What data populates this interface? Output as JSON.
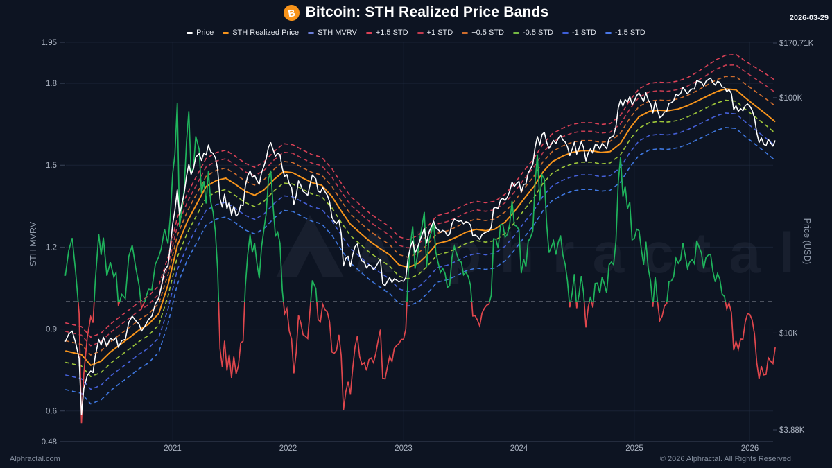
{
  "header": {
    "title": "Bitcoin: STH Realized Price Bands",
    "icon_glyph": "B",
    "date": "2026-03-29"
  },
  "legend": {
    "items": [
      {
        "label": "Price",
        "color": "#ffffff"
      },
      {
        "label": "STH Realized Price",
        "color": "#f7941c"
      },
      {
        "label": "STH MVRV",
        "color": "#6c7fd8"
      },
      {
        "label": "+1.5 STD",
        "color": "#da4156"
      },
      {
        "label": "+1 STD",
        "color": "#c43c50"
      },
      {
        "label": "+0.5 STD",
        "color": "#cf6d2d"
      },
      {
        "label": "-0.5 STD",
        "color": "#74b843"
      },
      {
        "label": "-1 STD",
        "color": "#3e5fd8"
      },
      {
        "label": "-1.5 STD",
        "color": "#4a78e8"
      }
    ]
  },
  "axes": {
    "left": {
      "title": "STH MVRV",
      "tick_labels": [
        "1.95",
        "1.8",
        "1.5",
        "1.2",
        "0.9",
        "0.6",
        "0.48"
      ],
      "tick_values": [
        1.95,
        1.8,
        1.5,
        1.2,
        0.9,
        0.6,
        0.48
      ]
    },
    "right": {
      "title": "Price (USD)",
      "labels": [
        "$170.71K",
        "$100K",
        "$10K",
        "$3.88K"
      ],
      "values_usd_k": [
        170.71,
        100,
        10,
        3.88
      ]
    },
    "x": {
      "tick_labels": [
        "2021",
        "2022",
        "2023",
        "2024",
        "2025",
        "2026"
      ],
      "tick_years": [
        2021,
        2022,
        2023,
        2024,
        2025,
        2026
      ]
    }
  },
  "watermark": {
    "text": "Alphractal"
  },
  "footer": {
    "left": "Alphractal.com",
    "right": "© 2026 Alphractal. All Rights Reserved."
  },
  "colors": {
    "background": "#0d1422",
    "grid": "#232e44",
    "axis_line": "#3a4459",
    "tick_text": "#a9b1bf",
    "axis_title": "#8e98a8",
    "reference_dash": "#8b919c",
    "mvrv_up": "#1fb45c",
    "mvrv_down": "#e0474d"
  },
  "chart_data": {
    "type": "line",
    "title": "Bitcoin: STH Realized Price Bands",
    "x_axis": {
      "label": "",
      "range": [
        2020.07,
        2026.24
      ],
      "tick_years": [
        2021,
        2022,
        2023,
        2024,
        2025,
        2026
      ]
    },
    "price_axis": {
      "scale": "log",
      "side": "right",
      "label": "Price (USD)",
      "top_usd_k": 170.71,
      "bottom_usd_k": 3.88
    },
    "mvrv_axis": {
      "scale": "linear",
      "side": "left",
      "label": "STH MVRV",
      "min": 0.48,
      "max": 1.95,
      "reference_line": 1.0
    },
    "band_upper_widen": {
      "from_t": 2025.5,
      "to_t": 2026.24,
      "max_factor": 1.6
    },
    "series": [
      {
        "id": "price",
        "name": "Price",
        "axis": "price_usd",
        "style": "solid",
        "color": "#ffffff",
        "points_t_usd_k": [
          2020.07,
          9.2,
          2020.1,
          9.9,
          2020.13,
          10.2,
          2020.16,
          9.1,
          2020.19,
          7.8,
          2020.21,
          4.5,
          2020.23,
          5.8,
          2020.26,
          6.6,
          2020.29,
          6.9,
          2020.31,
          6.8,
          2020.33,
          8.0,
          2020.36,
          9.4,
          2020.38,
          8.9,
          2020.4,
          9.6,
          2020.43,
          8.8,
          2020.46,
          9.5,
          2020.49,
          9.3,
          2020.51,
          9.6,
          2020.53,
          8.7,
          2020.56,
          9.3,
          2020.59,
          9.4,
          2020.62,
          11.1,
          2020.65,
          11.8,
          2020.68,
          11.3,
          2020.71,
          10.9,
          2020.73,
          10.2,
          2020.76,
          10.7,
          2020.79,
          11.4,
          2020.82,
          11.8,
          2020.85,
          13.3,
          2020.88,
          14.1,
          2020.9,
          15.6,
          2020.93,
          18.4,
          2020.96,
          19.4,
          2020.98,
          23.5,
          2021.0,
          29.0,
          2021.02,
          33.3,
          2021.04,
          40.6,
          2021.06,
          31.8,
          2021.08,
          35.4,
          2021.1,
          39.2,
          2021.12,
          46.4,
          2021.14,
          52.1,
          2021.16,
          47.2,
          2021.18,
          49.8,
          2021.2,
          55.9,
          2021.23,
          57.8,
          2021.25,
          54.1,
          2021.27,
          58.2,
          2021.29,
          57.1,
          2021.31,
          62.9,
          2021.33,
          58.9,
          2021.35,
          58.0,
          2021.37,
          55.6,
          2021.39,
          49.8,
          2021.41,
          37.2,
          2021.43,
          34.3,
          2021.45,
          38.9,
          2021.47,
          33.8,
          2021.49,
          35.9,
          2021.51,
          31.7,
          2021.53,
          34.6,
          2021.55,
          31.4,
          2021.57,
          32.2,
          2021.59,
          35.1,
          2021.61,
          34.8,
          2021.63,
          42.3,
          2021.65,
          46.4,
          2021.67,
          48.9,
          2021.69,
          45.9,
          2021.71,
          46.8,
          2021.73,
          44.5,
          2021.75,
          42.9,
          2021.77,
          48.0,
          2021.79,
          51.1,
          2021.81,
          54.9,
          2021.83,
          61.6,
          2021.85,
          64.4,
          2021.87,
          60.0,
          2021.89,
          56.4,
          2021.91,
          58.1,
          2021.93,
          57.3,
          2021.95,
          50.0,
          2021.97,
          46.3,
          2021.99,
          47.1,
          2022.01,
          43.0,
          2022.03,
          41.5,
          2022.05,
          35.2,
          2022.07,
          38.4,
          2022.09,
          44.3,
          2022.11,
          42.5,
          2022.13,
          40.0,
          2022.15,
          39.3,
          2022.17,
          38.5,
          2022.19,
          42.6,
          2022.21,
          46.9,
          2022.24,
          45.2,
          2022.26,
          40.1,
          2022.28,
          39.5,
          2022.3,
          41.6,
          2022.32,
          39.8,
          2022.34,
          38.5,
          2022.36,
          36.1,
          2022.38,
          31.0,
          2022.4,
          29.8,
          2022.42,
          29.2,
          2022.44,
          30.1,
          2022.46,
          26.5,
          2022.48,
          19.3,
          2022.5,
          20.8,
          2022.52,
          21.2,
          2022.54,
          19.2,
          2022.56,
          21.5,
          2022.58,
          23.3,
          2022.6,
          23.9,
          2022.62,
          21.4,
          2022.64,
          20.2,
          2022.66,
          20.0,
          2022.68,
          18.9,
          2022.7,
          19.5,
          2022.72,
          19.3,
          2022.74,
          18.6,
          2022.76,
          19.1,
          2022.78,
          19.9,
          2022.8,
          20.5,
          2022.82,
          16.2,
          2022.84,
          15.9,
          2022.86,
          16.6,
          2022.88,
          17.2,
          2022.9,
          16.4,
          2022.92,
          17.0,
          2022.94,
          16.8,
          2022.96,
          16.5,
          2022.98,
          16.7,
          2023.0,
          16.6,
          2023.02,
          17.2,
          2023.04,
          20.9,
          2023.06,
          23.2,
          2023.08,
          24.7,
          2023.1,
          21.9,
          2023.12,
          23.0,
          2023.14,
          24.6,
          2023.16,
          26.1,
          2023.18,
          27.8,
          2023.2,
          24.1,
          2023.22,
          26.8,
          2023.24,
          28.2,
          2023.26,
          29.9,
          2023.28,
          28.0,
          2023.3,
          27.5,
          2023.32,
          26.8,
          2023.34,
          27.3,
          2023.36,
          27.0,
          2023.38,
          25.9,
          2023.4,
          26.3,
          2023.42,
          29.2,
          2023.44,
          30.5,
          2023.46,
          30.1,
          2023.48,
          29.8,
          2023.5,
          30.0,
          2023.52,
          29.1,
          2023.54,
          29.7,
          2023.56,
          29.5,
          2023.58,
          28.8,
          2023.6,
          25.9,
          2023.62,
          26.1,
          2023.64,
          25.7,
          2023.66,
          25.0,
          2023.68,
          26.2,
          2023.7,
          26.6,
          2023.72,
          26.9,
          2023.74,
          27.1,
          2023.76,
          28.1,
          2023.78,
          33.9,
          2023.8,
          34.2,
          2023.82,
          33.8,
          2023.84,
          36.8,
          2023.86,
          37.4,
          2023.88,
          36.6,
          2023.9,
          37.9,
          2023.92,
          40.1,
          2023.94,
          43.8,
          2023.96,
          42.0,
          2023.98,
          43.2,
          2024.0,
          44.1,
          2024.02,
          39.7,
          2024.04,
          42.8,
          2024.06,
          43.0,
          2024.08,
          47.9,
          2024.1,
          49.8,
          2024.12,
          52.2,
          2024.14,
          61.6,
          2024.16,
          68.4,
          2024.18,
          63.1,
          2024.2,
          69.8,
          2024.22,
          71.2,
          2024.24,
          64.6,
          2024.26,
          60.9,
          2024.28,
          63.4,
          2024.3,
          65.8,
          2024.32,
          63.9,
          2024.34,
          67.1,
          2024.36,
          69.4,
          2024.38,
          66.2,
          2024.4,
          64.8,
          2024.42,
          61.9,
          2024.44,
          56.8,
          2024.46,
          60.2,
          2024.48,
          64.7,
          2024.5,
          57.6,
          2024.52,
          60.8,
          2024.54,
          65.1,
          2024.56,
          61.4,
          2024.58,
          53.9,
          2024.6,
          58.3,
          2024.62,
          60.6,
          2024.64,
          58.1,
          2024.66,
          63.1,
          2024.68,
          62.9,
          2024.7,
          60.5,
          2024.72,
          63.8,
          2024.74,
          62.5,
          2024.76,
          60.7,
          2024.78,
          66.9,
          2024.8,
          68.2,
          2024.82,
          68.9,
          2024.84,
          75.5,
          2024.86,
          90.4,
          2024.88,
          97.9,
          2024.9,
          92.1,
          2024.92,
          98.2,
          2024.94,
          95.8,
          2024.96,
          101.0,
          2024.98,
          93.5,
          2025.0,
          96.8,
          2025.02,
          102.2,
          2025.04,
          104.6,
          2025.06,
          100.1,
          2025.08,
          96.5,
          2025.1,
          104.9,
          2025.12,
          97.6,
          2025.14,
          94.3,
          2025.16,
          86.2,
          2025.18,
          96.1,
          2025.2,
          88.5,
          2025.22,
          82.3,
          2025.24,
          83.6,
          2025.26,
          86.9,
          2025.28,
          87.4,
          2025.3,
          94.7,
          2025.32,
          95.2,
          2025.34,
          97.0,
          2025.36,
          103.4,
          2025.38,
          102.1,
          2025.4,
          104.1,
          2025.42,
          110.6,
          2025.44,
          107.3,
          2025.46,
          103.8,
          2025.48,
          107.1,
          2025.5,
          109.0,
          2025.52,
          108.8,
          2025.54,
          118.1,
          2025.56,
          117.2,
          2025.58,
          116.4,
          2025.6,
          112.0,
          2025.62,
          117.3,
          2025.64,
          119.5,
          2025.66,
          121.1,
          2025.68,
          115.9,
          2025.7,
          113.1,
          2025.72,
          117.4,
          2025.74,
          116.0,
          2025.76,
          110.9,
          2025.78,
          110.7,
          2025.8,
          106.0,
          2025.82,
          108.2,
          2025.84,
          104.1,
          2025.86,
          89.0,
          2025.88,
          92.3,
          2025.9,
          87.5,
          2025.92,
          89.8,
          2025.94,
          88.0,
          2025.96,
          92.5,
          2025.98,
          94.0,
          2026.0,
          92.0,
          2026.02,
          88.5,
          2026.04,
          82.0,
          2026.06,
          71.0,
          2026.08,
          64.5,
          2026.1,
          67.5,
          2026.12,
          63.5,
          2026.14,
          62.5,
          2026.16,
          66.5,
          2026.18,
          64.2,
          2026.2,
          62.3,
          2026.22,
          65.8
        ]
      },
      {
        "id": "sth_realized_price",
        "name": "STH Realized Price",
        "axis": "price_usd",
        "style": "solid",
        "color": "#f7941c",
        "points_t_usd_k": [
          2020.07,
          8.4,
          2020.21,
          8.1,
          2020.29,
          7.3,
          2020.38,
          7.6,
          2020.46,
          8.3,
          2020.54,
          8.9,
          2020.63,
          9.6,
          2020.71,
          10.3,
          2020.79,
          10.9,
          2020.88,
          12.1,
          2020.96,
          16.0,
          2021.04,
          23.5,
          2021.13,
          30.0,
          2021.21,
          35.5,
          2021.29,
          42.0,
          2021.38,
          44.5,
          2021.46,
          45.5,
          2021.54,
          43.0,
          2021.63,
          40.0,
          2021.71,
          38.5,
          2021.79,
          40.5,
          2021.88,
          45.0,
          2021.96,
          48.5,
          2022.04,
          48.0,
          2022.13,
          45.5,
          2022.21,
          43.5,
          2022.29,
          42.5,
          2022.38,
          38.0,
          2022.46,
          33.0,
          2022.54,
          29.0,
          2022.63,
          26.5,
          2022.71,
          24.5,
          2022.79,
          23.0,
          2022.88,
          21.5,
          2022.96,
          19.5,
          2023.04,
          19.0,
          2023.13,
          19.8,
          2023.21,
          21.6,
          2023.29,
          24.0,
          2023.38,
          24.6,
          2023.46,
          25.6,
          2023.54,
          26.8,
          2023.63,
          27.6,
          2023.71,
          27.2,
          2023.79,
          27.6,
          2023.88,
          29.6,
          2023.96,
          32.8,
          2024.04,
          37.0,
          2024.13,
          42.0,
          2024.21,
          48.5,
          2024.29,
          53.5,
          2024.38,
          56.5,
          2024.46,
          58.5,
          2024.54,
          59.5,
          2024.63,
          59.5,
          2024.71,
          58.5,
          2024.79,
          59.0,
          2024.88,
          64.0,
          2024.96,
          74.0,
          2025.04,
          83.0,
          2025.13,
          87.5,
          2025.21,
          88.5,
          2025.29,
          88.0,
          2025.38,
          89.5,
          2025.46,
          92.5,
          2025.54,
          96.5,
          2025.63,
          101.5,
          2025.71,
          106.0,
          2025.79,
          109.0,
          2025.88,
          108.0,
          2025.96,
          100.0,
          2026.04,
          93.0,
          2026.13,
          86.0,
          2026.22,
          79.0
        ]
      },
      {
        "id": "band_plus_1_5",
        "name": "+1.5 STD",
        "axis": "price_usd",
        "style": "dashed",
        "color": "#da4156",
        "side": "upper",
        "realized_price_multiplier": 1.315
      },
      {
        "id": "band_plus_1",
        "name": "+1 STD",
        "axis": "price_usd",
        "style": "dashed",
        "color": "#c43c50",
        "side": "upper",
        "realized_price_multiplier": 1.21
      },
      {
        "id": "band_plus_0_5",
        "name": "+0.5 STD",
        "axis": "price_usd",
        "style": "dashed",
        "color": "#cf6d2d",
        "side": "upper",
        "realized_price_multiplier": 1.105
      },
      {
        "id": "band_minus_0_5",
        "name": "-0.5 STD",
        "axis": "price_usd",
        "style": "dashed",
        "color": "#9ec73a",
        "side": "lower",
        "realized_price_multiplier": 0.895
      },
      {
        "id": "band_minus_1",
        "name": "-1 STD",
        "axis": "price_usd",
        "style": "dashed",
        "color": "#4560d8",
        "side": "lower",
        "realized_price_multiplier": 0.79
      },
      {
        "id": "band_minus_1_5",
        "name": "-1.5 STD",
        "axis": "price_usd",
        "style": "dashed",
        "color": "#3f78e0",
        "side": "lower",
        "realized_price_multiplier": 0.685
      },
      {
        "id": "sth_mvrv",
        "name": "STH MVRV",
        "axis": "mvrv",
        "style": "solid",
        "formula": "price / sth_realized_price",
        "color_above_1": "#1fb45c",
        "color_below_1": "#e0474d"
      }
    ]
  }
}
